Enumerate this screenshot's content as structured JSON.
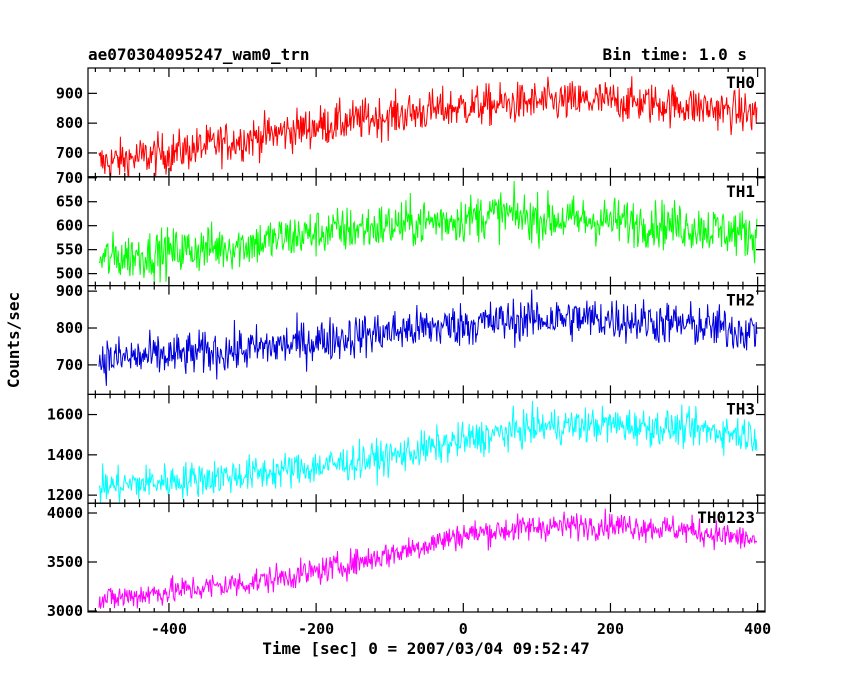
{
  "chart_data": {
    "type": "line",
    "title_left": "ae070304095247_wam0_trn",
    "title_right": "Bin time: 1.0 s",
    "ylabel": "Counts/sec",
    "xlabel": "Time [sec] 0 = 2007/03/04 09:52:47",
    "xlim": [
      -510,
      410
    ],
    "x_ticks": [
      -400,
      -200,
      0,
      200,
      400
    ],
    "x_range": [
      -495,
      399
    ],
    "grid": false,
    "panels": [
      {
        "name": "TH0",
        "color": "#ff0000",
        "ylim": [
          620,
          985
        ],
        "y_ticks": [
          700,
          800,
          900
        ],
        "trend": [
          [
            -495,
            665
          ],
          [
            -400,
            700
          ],
          [
            -300,
            745
          ],
          [
            -200,
            790
          ],
          [
            -100,
            825
          ],
          [
            0,
            855
          ],
          [
            100,
            870
          ],
          [
            200,
            875
          ],
          [
            300,
            860
          ],
          [
            399,
            830
          ]
        ],
        "noise": 35
      },
      {
        "name": "TH1",
        "color": "#00ff00",
        "ylim": [
          475,
          702
        ],
        "y_ticks": [
          500,
          550,
          600,
          650,
          700
        ],
        "trend": [
          [
            -495,
            530
          ],
          [
            -400,
            545
          ],
          [
            -300,
            560
          ],
          [
            -200,
            585
          ],
          [
            -100,
            600
          ],
          [
            0,
            615
          ],
          [
            50,
            625
          ],
          [
            100,
            615
          ],
          [
            200,
            610
          ],
          [
            300,
            600
          ],
          [
            399,
            580
          ]
        ],
        "noise": 25
      },
      {
        "name": "TH2",
        "color": "#0000dd",
        "ylim": [
          620,
          915
        ],
        "y_ticks": [
          700,
          800,
          900
        ],
        "trend": [
          [
            -495,
            715
          ],
          [
            -400,
            725
          ],
          [
            -300,
            740
          ],
          [
            -200,
            765
          ],
          [
            -100,
            790
          ],
          [
            0,
            810
          ],
          [
            100,
            825
          ],
          [
            200,
            825
          ],
          [
            300,
            810
          ],
          [
            399,
            790
          ]
        ],
        "noise": 30
      },
      {
        "name": "TH3",
        "color": "#00ffff",
        "ylim": [
          1160,
          1700
        ],
        "y_ticks": [
          1200,
          1400,
          1600
        ],
        "trend": [
          [
            -495,
            1240
          ],
          [
            -400,
            1270
          ],
          [
            -300,
            1300
          ],
          [
            -200,
            1340
          ],
          [
            -100,
            1390
          ],
          [
            0,
            1470
          ],
          [
            100,
            1540
          ],
          [
            200,
            1550
          ],
          [
            300,
            1530
          ],
          [
            399,
            1500
          ]
        ],
        "noise": 45
      },
      {
        "name": "TH0123",
        "color": "#ff00ff",
        "ylim": [
          2990,
          4100
        ],
        "y_ticks": [
          3000,
          3500,
          4000
        ],
        "trend": [
          [
            -495,
            3110
          ],
          [
            -400,
            3200
          ],
          [
            -300,
            3280
          ],
          [
            -200,
            3400
          ],
          [
            -100,
            3580
          ],
          [
            0,
            3780
          ],
          [
            100,
            3860
          ],
          [
            200,
            3880
          ],
          [
            300,
            3830
          ],
          [
            399,
            3720
          ]
        ],
        "noise": 70
      }
    ]
  }
}
